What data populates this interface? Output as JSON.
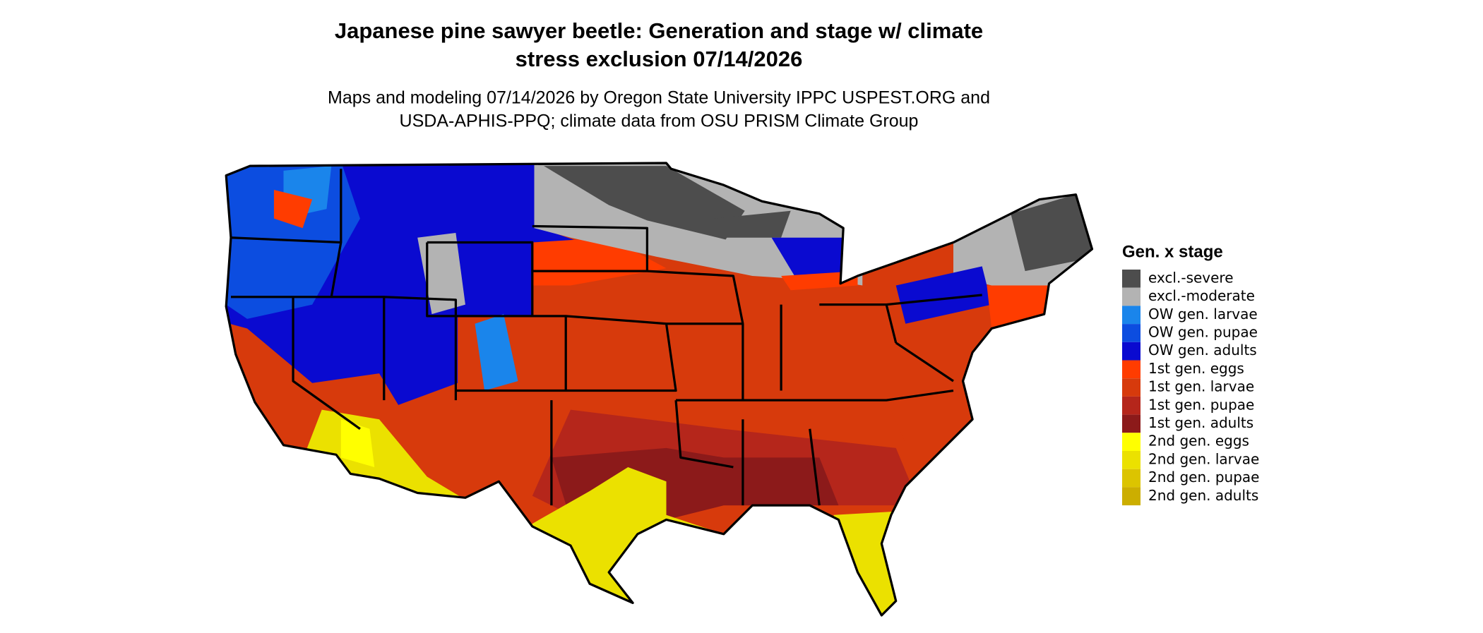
{
  "title_lines": [
    "Japanese pine sawyer beetle: Generation and stage w/ climate",
    "stress exclusion 07/14/2026"
  ],
  "subtitle_lines": [
    "Maps and modeling 07/14/2026 by Oregon State University IPPC USPEST.ORG and",
    "USDA-APHIS-PPQ; climate data from OSU PRISM Climate Group"
  ],
  "legend": {
    "title": "Gen. x stage",
    "items": [
      {
        "label": "excl.-severe",
        "color": "#4d4d4d"
      },
      {
        "label": "excl.-moderate",
        "color": "#b3b3b3"
      },
      {
        "label": "OW gen. larvae",
        "color": "#1a85eb"
      },
      {
        "label": "OW gen. pupae",
        "color": "#0c4de0"
      },
      {
        "label": "OW gen. adults",
        "color": "#0a0ad0"
      },
      {
        "label": "1st gen. eggs",
        "color": "#ff3c00"
      },
      {
        "label": "1st gen. larvae",
        "color": "#d73a0c"
      },
      {
        "label": "1st gen. pupae",
        "color": "#b5261b"
      },
      {
        "label": "1st gen. adults",
        "color": "#8c1a1a"
      },
      {
        "label": "2nd gen. eggs",
        "color": "#ffff00"
      },
      {
        "label": "2nd gen. larvae",
        "color": "#ebe100"
      },
      {
        "label": "2nd gen. pupae",
        "color": "#dcc400"
      },
      {
        "label": "2nd gen. adults",
        "color": "#ccae00"
      }
    ]
  }
}
